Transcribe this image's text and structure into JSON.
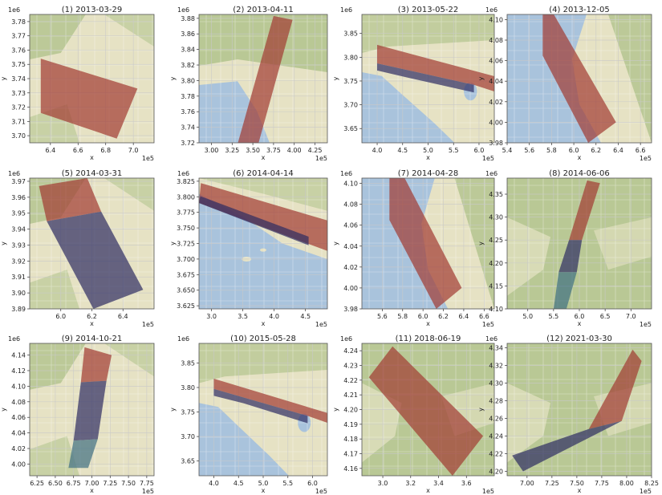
{
  "figure": {
    "colors": {
      "map_land": "#e6e2c4",
      "map_green": "#aabf86",
      "map_water": "#a9c3dc",
      "swath_red": "#a13a32",
      "swath_navy": "#2e2c63",
      "swath_teal": "#3f6f82",
      "grid": "#c9c9c9"
    }
  },
  "chart_data": [
    {
      "type": "map",
      "title": "(1) 2013-03-29",
      "xlabel": "x",
      "ylabel": "y",
      "x_exp": "1e5",
      "y_exp": "1e6",
      "xlim": [
        6.25,
        7.15
      ],
      "ylim": [
        3.695,
        3.785
      ],
      "xticks": [
        6.4,
        6.6,
        6.8,
        7.0
      ],
      "xtick_labels": [
        "6.4",
        "6.6",
        "6.8",
        "7.0"
      ],
      "yticks": [
        3.7,
        3.71,
        3.72,
        3.73,
        3.74,
        3.75,
        3.76,
        3.77,
        3.78
      ],
      "ytick_labels": [
        "3.70",
        "3.71",
        "3.72",
        "3.73",
        "3.74",
        "3.75",
        "3.76",
        "3.77",
        "3.78"
      ],
      "theme": "desert",
      "swaths": [
        {
          "color": "red",
          "points": [
            [
              6.33,
              3.754
            ],
            [
              7.03,
              3.733
            ],
            [
              6.88,
              3.698
            ],
            [
              6.33,
              3.716
            ]
          ]
        }
      ]
    },
    {
      "type": "map",
      "title": "(2) 2013-04-11",
      "xlabel": "x",
      "ylabel": "y",
      "x_exp": "1e5",
      "y_exp": "1e6",
      "xlim": [
        2.85,
        4.4
      ],
      "ylim": [
        3.72,
        3.885
      ],
      "xticks": [
        3.0,
        3.25,
        3.5,
        3.75,
        4.0,
        4.25
      ],
      "xtick_labels": [
        "3.00",
        "3.25",
        "3.50",
        "3.75",
        "4.00",
        "4.25"
      ],
      "yticks": [
        3.72,
        3.74,
        3.76,
        3.78,
        3.8,
        3.82,
        3.84,
        3.86,
        3.88
      ],
      "ytick_labels": [
        "3.72",
        "3.74",
        "3.76",
        "3.78",
        "3.80",
        "3.82",
        "3.84",
        "3.86",
        "3.88"
      ],
      "theme": "coastal_la",
      "swaths": [
        {
          "color": "red",
          "points": [
            [
              3.75,
              3.883
            ],
            [
              3.98,
              3.878
            ],
            [
              3.57,
              3.72
            ],
            [
              3.32,
              3.72
            ]
          ]
        }
      ]
    },
    {
      "type": "map",
      "title": "(3) 2013-05-22",
      "xlabel": "x",
      "ylabel": "y",
      "x_exp": "1e5",
      "y_exp": "1e6",
      "xlim": [
        3.7,
        6.3
      ],
      "ylim": [
        3.62,
        3.89
      ],
      "xticks": [
        4.0,
        4.5,
        5.0,
        5.5,
        6.0
      ],
      "xtick_labels": [
        "4.0",
        "4.5",
        "5.0",
        "5.5",
        "6.0"
      ],
      "yticks": [
        3.65,
        3.7,
        3.75,
        3.8,
        3.85
      ],
      "ytick_labels": [
        "3.65",
        "3.70",
        "3.75",
        "3.80",
        "3.85"
      ],
      "theme": "coastal_south",
      "swaths": [
        {
          "color": "red",
          "points": [
            [
              4.0,
              3.826
            ],
            [
              6.3,
              3.76
            ],
            [
              6.3,
              3.728
            ],
            [
              5.9,
              3.742
            ],
            [
              4.0,
              3.787
            ]
          ]
        },
        {
          "color": "navy",
          "points": [
            [
              4.0,
              3.787
            ],
            [
              5.9,
              3.742
            ],
            [
              5.9,
              3.726
            ],
            [
              4.6,
              3.757
            ],
            [
              4.0,
              3.772
            ]
          ]
        }
      ]
    },
    {
      "type": "map",
      "title": "(4) 2013-12-05",
      "xlabel": "x",
      "ylabel": "y",
      "x_exp": "1e5",
      "y_exp": "1e6",
      "xlim": [
        5.4,
        6.7
      ],
      "ylim": [
        3.98,
        4.105
      ],
      "xticks": [
        5.4,
        5.6,
        5.8,
        6.0,
        6.2,
        6.4,
        6.6
      ],
      "xtick_labels": [
        "5.4",
        "5.6",
        "5.8",
        "6.0",
        "6.2",
        "6.4",
        "6.6"
      ],
      "yticks": [
        3.98,
        4.0,
        4.02,
        4.04,
        4.06,
        4.08,
        4.1
      ],
      "ytick_labels": [
        "3.98",
        "4.00",
        "4.02",
        "4.04",
        "4.06",
        "4.08",
        "4.10"
      ],
      "theme": "bay",
      "swaths": [
        {
          "color": "red",
          "points": [
            [
              5.72,
              4.105
            ],
            [
              5.82,
              4.105
            ],
            [
              6.38,
              4.0
            ],
            [
              6.13,
              3.98
            ],
            [
              5.72,
              4.065
            ]
          ]
        }
      ]
    },
    {
      "type": "map",
      "title": "(5) 2014-03-31",
      "xlabel": "x",
      "ylabel": "y",
      "x_exp": "1e5",
      "y_exp": "1e6",
      "xlim": [
        5.8,
        6.6
      ],
      "ylim": [
        3.89,
        3.972
      ],
      "xticks": [
        6.0,
        6.2,
        6.4
      ],
      "xtick_labels": [
        "6.0",
        "6.2",
        "6.4"
      ],
      "yticks": [
        3.89,
        3.9,
        3.91,
        3.92,
        3.93,
        3.94,
        3.95,
        3.96,
        3.97
      ],
      "ytick_labels": [
        "3.89",
        "3.90",
        "3.91",
        "3.92",
        "3.93",
        "3.94",
        "3.95",
        "3.96",
        "3.97"
      ],
      "theme": "desert",
      "swaths": [
        {
          "color": "red",
          "points": [
            [
              5.86,
              3.967
            ],
            [
              6.17,
              3.972
            ],
            [
              6.26,
              3.951
            ],
            [
              5.91,
              3.945
            ]
          ]
        },
        {
          "color": "navy",
          "points": [
            [
              5.91,
              3.945
            ],
            [
              6.26,
              3.951
            ],
            [
              6.53,
              3.902
            ],
            [
              6.21,
              3.89
            ]
          ]
        }
      ]
    },
    {
      "type": "map",
      "title": "(6) 2014-04-14",
      "xlabel": "x",
      "ylabel": "y",
      "x_exp": "1e5",
      "y_exp": "1e6",
      "xlim": [
        2.8,
        4.85
      ],
      "ylim": [
        3.62,
        3.83
      ],
      "xticks": [
        3.0,
        3.5,
        4.0,
        4.5
      ],
      "xtick_labels": [
        "3.0",
        "3.5",
        "4.0",
        "4.5"
      ],
      "yticks": [
        3.625,
        3.65,
        3.675,
        3.7,
        3.725,
        3.75,
        3.775,
        3.8,
        3.825
      ],
      "ytick_labels": [
        "3.625",
        "3.650",
        "3.675",
        "3.700",
        "3.725",
        "3.750",
        "3.775",
        "3.800",
        "3.825"
      ],
      "theme": "ocean",
      "swaths": [
        {
          "color": "red",
          "points": [
            [
              2.83,
              3.822
            ],
            [
              4.85,
              3.762
            ],
            [
              4.85,
              3.713
            ],
            [
              2.8,
              3.79
            ]
          ]
        },
        {
          "color": "navy",
          "points": [
            [
              2.8,
              3.79
            ],
            [
              4.55,
              3.722
            ],
            [
              4.55,
              3.736
            ],
            [
              2.82,
              3.801
            ]
          ]
        }
      ]
    },
    {
      "type": "map",
      "title": "(7) 2014-04-28",
      "xlabel": "x",
      "ylabel": "y",
      "x_exp": "1e5",
      "y_exp": "1e6",
      "xlim": [
        5.4,
        6.7
      ],
      "ylim": [
        3.98,
        4.105
      ],
      "xticks": [
        5.6,
        5.8,
        6.0,
        6.2,
        6.4,
        6.6
      ],
      "xtick_labels": [
        "5.6",
        "5.8",
        "6.0",
        "6.2",
        "6.4",
        "6.6"
      ],
      "yticks": [
        3.98,
        4.0,
        4.02,
        4.04,
        4.06,
        4.08,
        4.1
      ],
      "ytick_labels": [
        "3.98",
        "4.00",
        "4.02",
        "4.04",
        "4.06",
        "4.08",
        "4.10"
      ],
      "theme": "bay",
      "swaths": [
        {
          "color": "red",
          "points": [
            [
              5.67,
              4.105
            ],
            [
              5.82,
              4.105
            ],
            [
              6.38,
              4.0
            ],
            [
              6.13,
              3.98
            ],
            [
              5.67,
              4.065
            ]
          ]
        }
      ]
    },
    {
      "type": "map",
      "title": "(8) 2014-06-06",
      "xlabel": "x",
      "ylabel": "y",
      "x_exp": "1e5",
      "y_exp": "1e6",
      "xlim": [
        4.6,
        7.4
      ],
      "ylim": [
        4.1,
        4.385
      ],
      "xticks": [
        5.0,
        5.5,
        6.0,
        6.5,
        7.0
      ],
      "xtick_labels": [
        "5.0",
        "5.5",
        "6.0",
        "6.5",
        "7.0"
      ],
      "yticks": [
        4.1,
        4.15,
        4.2,
        4.25,
        4.3,
        4.35
      ],
      "ytick_labels": [
        "4.10",
        "4.15",
        "4.20",
        "4.25",
        "4.30",
        "4.35"
      ],
      "theme": "green",
      "swaths": [
        {
          "color": "red",
          "points": [
            [
              6.15,
              4.38
            ],
            [
              6.4,
              4.374
            ],
            [
              6.05,
              4.25
            ],
            [
              5.8,
              4.25
            ]
          ]
        },
        {
          "color": "navy",
          "points": [
            [
              5.8,
              4.25
            ],
            [
              6.05,
              4.25
            ],
            [
              5.95,
              4.18
            ],
            [
              5.6,
              4.18
            ]
          ]
        },
        {
          "color": "teal",
          "points": [
            [
              5.6,
              4.18
            ],
            [
              5.95,
              4.18
            ],
            [
              5.75,
              4.1
            ],
            [
              5.5,
              4.1
            ]
          ]
        }
      ]
    },
    {
      "type": "map",
      "title": "(9) 2014-10-21",
      "xlabel": "x",
      "ylabel": "y",
      "x_exp": "1e5",
      "y_exp": "1e6",
      "xlim": [
        6.15,
        7.85
      ],
      "ylim": [
        3.985,
        4.155
      ],
      "xticks": [
        6.25,
        6.5,
        6.75,
        7.0,
        7.25,
        7.5,
        7.75
      ],
      "xtick_labels": [
        "6.25",
        "6.50",
        "6.75",
        "7.00",
        "7.25",
        "7.50",
        "7.75"
      ],
      "yticks": [
        4.0,
        4.02,
        4.04,
        4.06,
        4.08,
        4.1,
        4.12,
        4.14
      ],
      "ytick_labels": [
        "4.00",
        "4.02",
        "4.04",
        "4.06",
        "4.08",
        "4.10",
        "4.12",
        "4.14"
      ],
      "theme": "desert",
      "swaths": [
        {
          "color": "red",
          "points": [
            [
              6.9,
              4.15
            ],
            [
              7.27,
              4.14
            ],
            [
              7.2,
              4.107
            ],
            [
              6.85,
              4.105
            ]
          ]
        },
        {
          "color": "navy",
          "points": [
            [
              6.85,
              4.105
            ],
            [
              7.2,
              4.107
            ],
            [
              7.08,
              4.032
            ],
            [
              6.75,
              4.03
            ]
          ]
        },
        {
          "color": "teal",
          "points": [
            [
              6.75,
              4.03
            ],
            [
              7.08,
              4.032
            ],
            [
              6.95,
              3.995
            ],
            [
              6.68,
              3.995
            ]
          ]
        }
      ]
    },
    {
      "type": "map",
      "title": "(10) 2015-05-28",
      "xlabel": "x",
      "ylabel": "y",
      "x_exp": "1e5",
      "y_exp": "1e6",
      "xlim": [
        3.7,
        6.3
      ],
      "ylim": [
        3.62,
        3.89
      ],
      "xticks": [
        4.0,
        4.5,
        5.0,
        5.5,
        6.0
      ],
      "xtick_labels": [
        "4.0",
        "4.5",
        "5.0",
        "5.5",
        "6.0"
      ],
      "yticks": [
        3.65,
        3.7,
        3.75,
        3.8,
        3.85
      ],
      "ytick_labels": [
        "3.65",
        "3.70",
        "3.75",
        "3.80",
        "3.85"
      ],
      "theme": "coastal_south",
      "swaths": [
        {
          "color": "red",
          "points": [
            [
              4.0,
              3.818
            ],
            [
              6.3,
              3.748
            ],
            [
              6.3,
              3.728
            ],
            [
              5.9,
              3.742
            ],
            [
              4.0,
              3.797
            ]
          ]
        },
        {
          "color": "navy",
          "points": [
            [
              4.0,
              3.797
            ],
            [
              5.9,
              3.742
            ],
            [
              5.9,
              3.727
            ],
            [
              4.6,
              3.768
            ],
            [
              4.0,
              3.783
            ]
          ]
        }
      ]
    },
    {
      "type": "map",
      "title": "(11) 2018-06-19",
      "xlabel": "x",
      "ylabel": "y",
      "x_exp": "1e5",
      "y_exp": "1e6",
      "xlim": [
        2.85,
        3.8
      ],
      "ylim": [
        4.155,
        4.245
      ],
      "xticks": [
        3.0,
        3.2,
        3.4,
        3.6
      ],
      "xtick_labels": [
        "3.0",
        "3.2",
        "3.4",
        "3.6"
      ],
      "yticks": [
        4.16,
        4.17,
        4.18,
        4.19,
        4.2,
        4.21,
        4.22,
        4.23,
        4.24
      ],
      "ytick_labels": [
        "4.16",
        "4.17",
        "4.18",
        "4.19",
        "4.20",
        "4.21",
        "4.22",
        "4.23",
        "4.24"
      ],
      "theme": "green",
      "swaths": [
        {
          "color": "red",
          "points": [
            [
              2.9,
              4.222
            ],
            [
              3.07,
              4.243
            ],
            [
              3.72,
              4.182
            ],
            [
              3.5,
              4.155
            ]
          ]
        }
      ]
    },
    {
      "type": "map",
      "title": "(12) 2021-03-30",
      "xlabel": "x",
      "ylabel": "y",
      "x_exp": "1e5",
      "y_exp": "1e6",
      "xlim": [
        6.8,
        8.25
      ],
      "ylim": [
        4.195,
        4.345
      ],
      "xticks": [
        7.0,
        7.25,
        7.5,
        7.75,
        8.0,
        8.25
      ],
      "xtick_labels": [
        "7.00",
        "7.25",
        "7.50",
        "7.75",
        "8.00",
        "8.25"
      ],
      "yticks": [
        4.2,
        4.22,
        4.24,
        4.26,
        4.28,
        4.3,
        4.32,
        4.34
      ],
      "ytick_labels": [
        "4.20",
        "4.22",
        "4.24",
        "4.26",
        "4.28",
        "4.30",
        "4.32",
        "4.34"
      ],
      "theme": "green",
      "swaths": [
        {
          "color": "red",
          "points": [
            [
              7.62,
              4.248
            ],
            [
              7.95,
              4.257
            ],
            [
              8.15,
              4.325
            ],
            [
              8.06,
              4.338
            ]
          ]
        },
        {
          "color": "navy",
          "points": [
            [
              6.85,
              4.218
            ],
            [
              6.96,
              4.2
            ],
            [
              7.95,
              4.257
            ],
            [
              7.62,
              4.248
            ]
          ]
        }
      ]
    }
  ]
}
